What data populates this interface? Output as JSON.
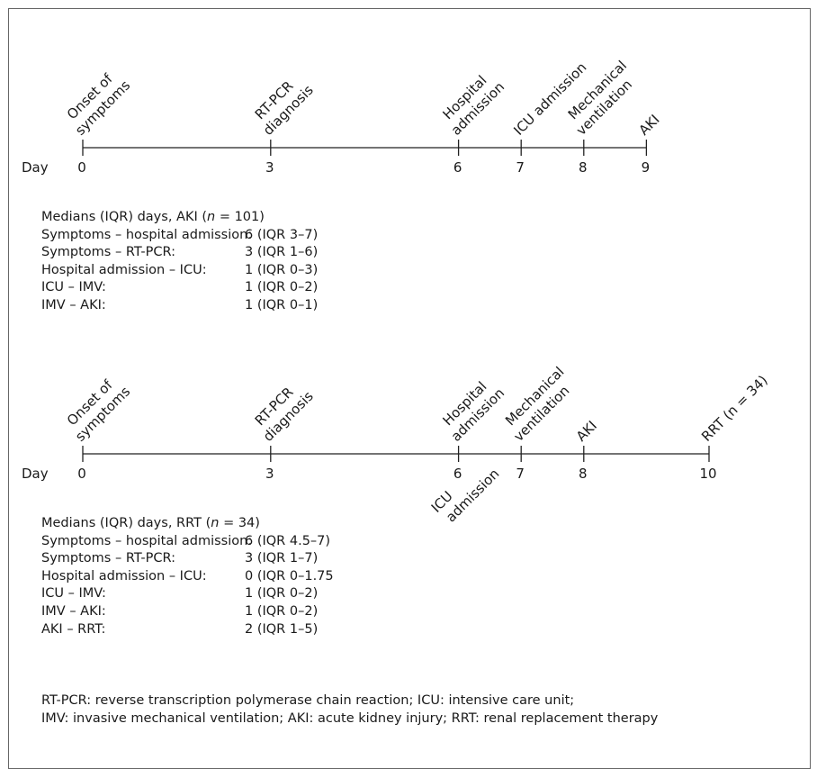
{
  "timeline_aki": {
    "day_label": "Day",
    "events": [
      {
        "day": 0,
        "day_label": "0",
        "lines": [
          "Onset of",
          "symptoms"
        ]
      },
      {
        "day": 3,
        "day_label": "3",
        "lines": [
          "RT-PCR",
          "diagnosis"
        ]
      },
      {
        "day": 6,
        "day_label": "6",
        "lines": [
          "Hospital",
          "admission"
        ]
      },
      {
        "day": 7,
        "day_label": "7",
        "lines": [
          "ICU admission"
        ]
      },
      {
        "day": 8,
        "day_label": "8",
        "lines": [
          "Mechanical",
          "ventilation"
        ]
      },
      {
        "day": 9,
        "day_label": "9",
        "lines": [
          "AKI"
        ]
      }
    ]
  },
  "stats_aki": {
    "header_prefix": "Medians (IQR) days, AKI (",
    "header_n_symbol": "n",
    "header_suffix": " = 101)",
    "rows": [
      {
        "label": "Symptoms – hospital admission:",
        "value": "6 (IQR 3–7)"
      },
      {
        "label": "Symptoms – RT-PCR:",
        "value": "3 (IQR 1–6)"
      },
      {
        "label": "Hospital admission – ICU:",
        "value": "1 (IQR 0–3)"
      },
      {
        "label": "ICU – IMV:",
        "value": "1 (IQR 0–2)"
      },
      {
        "label": "IMV – AKI:",
        "value": "1 (IQR 0–1)"
      }
    ]
  },
  "timeline_rrt": {
    "day_label": "Day",
    "events_above": [
      {
        "day": 0,
        "day_label": "0",
        "lines": [
          "Onset of",
          "symptoms"
        ]
      },
      {
        "day": 3,
        "day_label": "3",
        "lines": [
          "RT-PCR",
          "diagnosis"
        ]
      },
      {
        "day": 6,
        "day_label": "6",
        "lines": [
          "Hospital",
          "admission"
        ]
      },
      {
        "day": 7,
        "day_label": "7",
        "lines": [
          "Mechanical",
          "ventilation"
        ]
      },
      {
        "day": 8,
        "day_label": "8",
        "lines": [
          "AKI"
        ]
      },
      {
        "day": 10,
        "day_label": "10",
        "lines": [
          "RRT (n = 34)"
        ]
      }
    ],
    "events_below": [
      {
        "day": 6,
        "lines": [
          "ICU",
          "admission"
        ]
      }
    ]
  },
  "stats_rrt": {
    "header_prefix": "Medians (IQR) days, RRT (",
    "header_n_symbol": "n",
    "header_suffix": " = 34)",
    "rows": [
      {
        "label": "Symptoms – hospital admission:",
        "value": "6 (IQR 4.5–7)"
      },
      {
        "label": "Symptoms – RT-PCR:",
        "value": "3 (IQR 1–7)"
      },
      {
        "label": "Hospital admission – ICU:",
        "value": "0 (IQR 0–1.75"
      },
      {
        "label": "ICU – IMV:",
        "value": "1 (IQR 0–2)"
      },
      {
        "label": "IMV – AKI:",
        "value": "1 (IQR 0–2)"
      },
      {
        "label": "AKI – RRT:",
        "value": "2 (IQR 1–5)"
      }
    ]
  },
  "footnote": {
    "line1": "RT-PCR: reverse transcription polymerase chain reaction; ICU: intensive care unit;",
    "line2": "IMV: invasive mechanical ventilation; AKI: acute kidney injury; RRT: renal replacement therapy"
  }
}
